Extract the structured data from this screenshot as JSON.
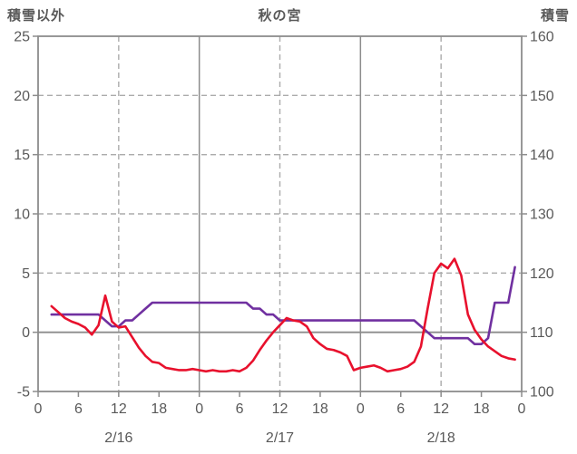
{
  "chart_data": {
    "type": "line",
    "title": "秋の宮",
    "left_axis_title": "積雪以外",
    "right_axis_title": "積雪",
    "colors": {
      "grid": "#ababab",
      "axis": "#8c8c8c",
      "text": "#595959",
      "background": "#ffffff"
    },
    "left_axis": {
      "min": -5,
      "max": 25,
      "ticks": [
        25,
        20,
        15,
        10,
        5,
        0,
        -5
      ]
    },
    "right_axis": {
      "min": 100,
      "max": 160,
      "ticks": [
        160,
        150,
        140,
        130,
        120,
        110,
        100
      ]
    },
    "x_axis": {
      "min": 0,
      "max": 72,
      "hour_ticks": [
        0,
        6,
        12,
        18,
        24,
        30,
        36,
        42,
        48,
        54,
        60,
        66,
        72
      ],
      "hour_labels": [
        "0",
        "6",
        "12",
        "18",
        "0",
        "6",
        "12",
        "18",
        "0",
        "6",
        "12",
        "18",
        "0"
      ],
      "date_labels": [
        {
          "hour": 12,
          "label": "2/16"
        },
        {
          "hour": 36,
          "label": "2/17"
        },
        {
          "hour": 60,
          "label": "2/18"
        }
      ]
    },
    "gridlines": {
      "h_dashed_left_values": [
        20,
        15,
        10,
        5
      ],
      "h_solid_left_values": [
        0
      ],
      "v_solid_hours": [
        24,
        48
      ],
      "v_dashed_hours": [
        12,
        36,
        60
      ]
    },
    "series": [
      {
        "name": "積雪",
        "axis": "right",
        "color": "#7030a0",
        "x": [
          2,
          3,
          4,
          5,
          6,
          7,
          8,
          9,
          10,
          11,
          12,
          13,
          14,
          15,
          16,
          17,
          18,
          19,
          20,
          21,
          22,
          23,
          24,
          25,
          26,
          27,
          28,
          29,
          30,
          31,
          32,
          33,
          34,
          35,
          36,
          37,
          38,
          39,
          40,
          41,
          42,
          43,
          44,
          45,
          46,
          47,
          48,
          49,
          50,
          51,
          52,
          53,
          54,
          55,
          56,
          57,
          58,
          59,
          60,
          61,
          62,
          63,
          64,
          65,
          66,
          67,
          68,
          69,
          70,
          71
        ],
        "values": [
          113,
          113,
          113,
          113,
          113,
          113,
          113,
          113,
          112,
          111,
          111,
          112,
          112,
          113,
          114,
          115,
          115,
          115,
          115,
          115,
          115,
          115,
          115,
          115,
          115,
          115,
          115,
          115,
          115,
          115,
          114,
          114,
          113,
          113,
          112,
          112,
          112,
          112,
          112,
          112,
          112,
          112,
          112,
          112,
          112,
          112,
          112,
          112,
          112,
          112,
          112,
          112,
          112,
          112,
          112,
          111,
          110,
          109,
          109,
          109,
          109,
          109,
          109,
          108,
          108,
          109,
          115,
          115,
          115,
          121
        ]
      },
      {
        "name": "積雪以外",
        "axis": "left",
        "color": "#e8112d",
        "x": [
          2,
          3,
          4,
          5,
          6,
          7,
          8,
          9,
          10,
          11,
          12,
          13,
          14,
          15,
          16,
          17,
          18,
          19,
          20,
          21,
          22,
          23,
          24,
          25,
          26,
          27,
          28,
          29,
          30,
          31,
          32,
          33,
          34,
          35,
          36,
          37,
          38,
          39,
          40,
          41,
          42,
          43,
          44,
          45,
          46,
          47,
          48,
          49,
          50,
          51,
          52,
          53,
          54,
          55,
          56,
          57,
          58,
          59,
          60,
          61,
          62,
          63,
          64,
          65,
          66,
          67,
          68,
          69,
          70,
          71
        ],
        "values": [
          2.2,
          1.7,
          1.2,
          0.9,
          0.7,
          0.4,
          -0.2,
          0.6,
          3.1,
          0.9,
          0.4,
          0.5,
          -0.4,
          -1.3,
          -2.0,
          -2.5,
          -2.6,
          -3.0,
          -3.1,
          -3.2,
          -3.2,
          -3.1,
          -3.2,
          -3.3,
          -3.2,
          -3.3,
          -3.3,
          -3.2,
          -3.3,
          -3.0,
          -2.4,
          -1.5,
          -0.7,
          0.0,
          0.6,
          1.2,
          1.0,
          0.9,
          0.5,
          -0.5,
          -1.0,
          -1.4,
          -1.5,
          -1.7,
          -2.0,
          -3.2,
          -3.0,
          -2.9,
          -2.8,
          -3.0,
          -3.3,
          -3.2,
          -3.1,
          -2.9,
          -2.5,
          -1.2,
          2.0,
          5.0,
          5.8,
          5.4,
          6.2,
          4.8,
          1.5,
          0.2,
          -0.6,
          -1.2,
          -1.6,
          -2.0,
          -2.2,
          -2.3
        ]
      }
    ]
  }
}
